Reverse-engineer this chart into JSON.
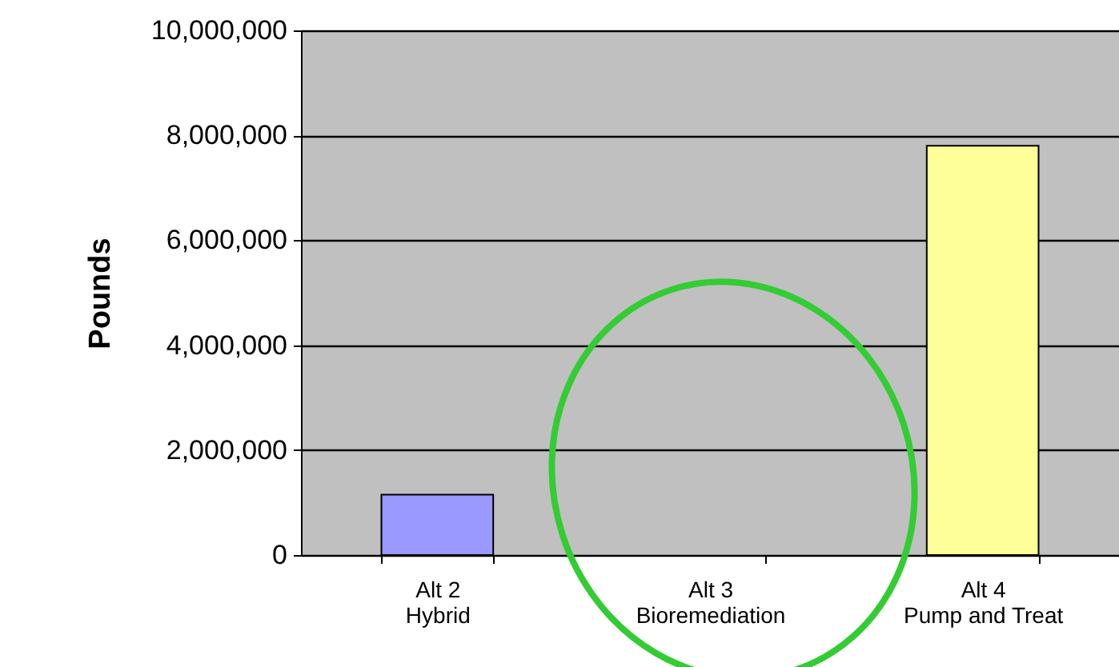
{
  "chart_data": {
    "type": "bar",
    "ylabel": "Pounds",
    "categories": [
      "Alt 2\nHybrid",
      "Alt 3\nBioremediation",
      "Alt 4\nPump and Treat"
    ],
    "values": [
      1150000,
      null,
      7800000
    ],
    "colors": [
      "#9999ff",
      null,
      "#ffff99"
    ],
    "ylim": [
      0,
      10000000
    ],
    "yticks": [
      0,
      {
        "value": 2000000,
        "label": "2,000,000"
      },
      {
        "value": 4000000,
        "label": "4,000,000"
      },
      {
        "value": 6000000,
        "label": "6,000,000"
      },
      {
        "value": 8000000,
        "label": "8,000,000"
      },
      {
        "value": 10000000,
        "label": "10,000,000"
      }
    ],
    "grid": "y"
  }
}
